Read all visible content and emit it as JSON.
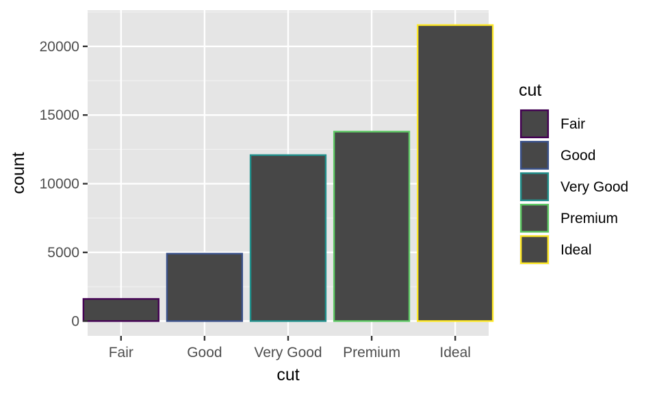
{
  "chart_data": {
    "type": "bar",
    "categories": [
      "Fair",
      "Good",
      "Very Good",
      "Premium",
      "Ideal"
    ],
    "values": [
      1610,
      4906,
      12082,
      13791,
      21551
    ],
    "outline_colors": [
      "#440154",
      "#3B528B",
      "#21908C",
      "#5DC863",
      "#FDE725"
    ],
    "fill_color": "#474747",
    "panel_background": "#E5E5E5",
    "grid": true,
    "xlabel": "cut",
    "ylabel": "count",
    "ylim": [
      -1077.55,
      22628.55
    ],
    "yticks": [
      0,
      5000,
      10000,
      15000,
      20000
    ],
    "ytick_labels": [
      "0",
      "5000",
      "10000",
      "15000",
      "20000"
    ],
    "legend": {
      "title": "cut",
      "placement": "right",
      "entries": [
        "Fair",
        "Good",
        "Very Good",
        "Premium",
        "Ideal"
      ]
    }
  }
}
